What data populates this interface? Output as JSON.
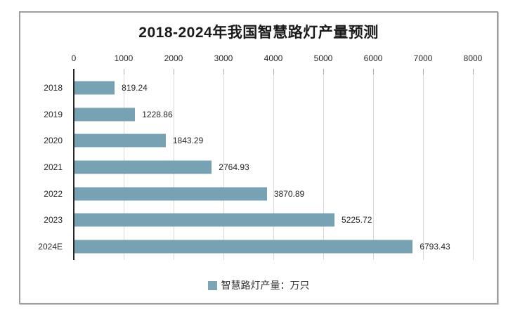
{
  "chart_data": {
    "type": "bar",
    "orientation": "horizontal",
    "title": "2018-2024年我国智慧路灯产量预测",
    "categories": [
      "2018",
      "2019",
      "2020",
      "2021",
      "2022",
      "2023",
      "2024E"
    ],
    "values": [
      819.24,
      1228.86,
      1843.29,
      2764.93,
      3870.89,
      5225.72,
      6793.43
    ],
    "value_labels": [
      "819.24",
      "1228.86",
      "1843.29",
      "2764.93",
      "3870.89",
      "5225.72",
      "6793.43"
    ],
    "xlabel": "",
    "ylabel": "",
    "xlim": [
      0,
      8000
    ],
    "x_ticks": [
      0,
      1000,
      2000,
      3000,
      4000,
      5000,
      6000,
      7000,
      8000
    ],
    "x_tick_labels": [
      "0",
      "1000",
      "2000",
      "3000",
      "4000",
      "5000",
      "6000",
      "7000",
      "8000"
    ],
    "x_axis_position": "top",
    "grid": true,
    "legend": [
      "智慧路灯产量：万只"
    ],
    "legend_position": "bottom",
    "colors": {
      "bar": "#76a2b4",
      "legend_marker": "#7da5b4",
      "gridline": "#d9d9d9",
      "axis_line": "#262626",
      "text": "#262626",
      "border": "#9e9e9e"
    }
  }
}
